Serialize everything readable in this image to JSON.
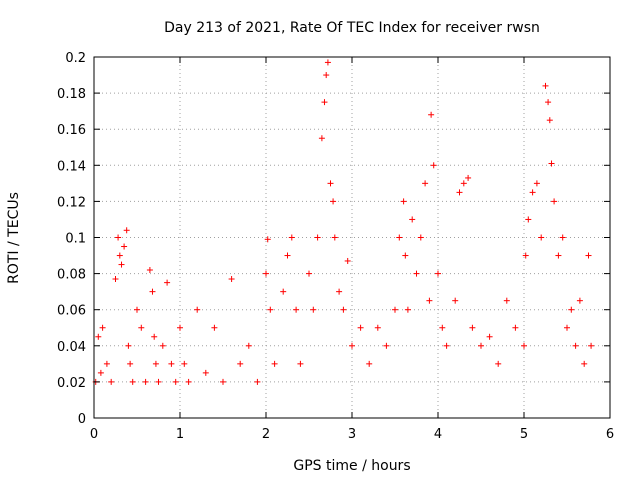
{
  "chart_data": {
    "type": "scatter",
    "title": "Day 213 of 2021, Rate Of TEC Index for receiver rwsn",
    "xlabel": "GPS time / hours",
    "ylabel": "ROTI / TECUs",
    "xlim": [
      0,
      6
    ],
    "ylim": [
      0,
      0.2
    ],
    "x_ticks": [
      "0",
      "1",
      "2",
      "3",
      "4",
      "5",
      "6"
    ],
    "y_ticks": [
      "0",
      "0.02",
      "0.04",
      "0.06",
      "0.08",
      "0.1",
      "0.12",
      "0.14",
      "0.16",
      "0.18",
      "0.2"
    ],
    "grid": true,
    "marker": "+",
    "color": "#ff0000",
    "series": [
      {
        "name": "ROTI",
        "x": [
          0.02,
          0.05,
          0.08,
          0.1,
          0.15,
          0.2,
          0.25,
          0.28,
          0.3,
          0.32,
          0.35,
          0.38,
          0.4,
          0.42,
          0.45,
          0.5,
          0.55,
          0.6,
          0.65,
          0.68,
          0.7,
          0.72,
          0.75,
          0.8,
          0.85,
          0.9,
          0.95,
          1.0,
          1.05,
          1.1,
          1.2,
          1.3,
          1.4,
          1.5,
          1.6,
          1.7,
          1.8,
          1.9,
          2.0,
          2.02,
          2.05,
          2.1,
          2.2,
          2.25,
          2.3,
          2.35,
          2.4,
          2.5,
          2.55,
          2.6,
          2.65,
          2.68,
          2.7,
          2.72,
          2.75,
          2.78,
          2.8,
          2.85,
          2.9,
          2.95,
          3.0,
          3.1,
          3.2,
          3.3,
          3.4,
          3.5,
          3.55,
          3.6,
          3.62,
          3.65,
          3.7,
          3.75,
          3.8,
          3.85,
          3.9,
          3.92,
          3.95,
          4.0,
          4.05,
          4.1,
          4.2,
          4.25,
          4.3,
          4.35,
          4.4,
          4.5,
          4.6,
          4.7,
          4.8,
          4.9,
          5.0,
          5.02,
          5.05,
          5.1,
          5.15,
          5.2,
          5.25,
          5.28,
          5.3,
          5.32,
          5.35,
          5.4,
          5.45,
          5.5,
          5.55,
          5.6,
          5.65,
          5.7,
          5.75,
          5.78
        ],
        "y": [
          0.02,
          0.045,
          0.025,
          0.05,
          0.03,
          0.02,
          0.077,
          0.1,
          0.09,
          0.085,
          0.095,
          0.104,
          0.04,
          0.03,
          0.02,
          0.06,
          0.05,
          0.02,
          0.082,
          0.07,
          0.045,
          0.03,
          0.02,
          0.04,
          0.075,
          0.03,
          0.02,
          0.05,
          0.03,
          0.02,
          0.06,
          0.025,
          0.05,
          0.02,
          0.077,
          0.03,
          0.04,
          0.02,
          0.08,
          0.099,
          0.06,
          0.03,
          0.07,
          0.09,
          0.1,
          0.06,
          0.03,
          0.08,
          0.06,
          0.1,
          0.155,
          0.175,
          0.19,
          0.197,
          0.13,
          0.12,
          0.1,
          0.07,
          0.06,
          0.087,
          0.04,
          0.05,
          0.03,
          0.05,
          0.04,
          0.06,
          0.1,
          0.12,
          0.09,
          0.06,
          0.11,
          0.08,
          0.1,
          0.13,
          0.065,
          0.168,
          0.14,
          0.08,
          0.05,
          0.04,
          0.065,
          0.125,
          0.13,
          0.133,
          0.05,
          0.04,
          0.045,
          0.03,
          0.065,
          0.05,
          0.04,
          0.09,
          0.11,
          0.125,
          0.13,
          0.1,
          0.184,
          0.175,
          0.165,
          0.141,
          0.12,
          0.09,
          0.1,
          0.05,
          0.06,
          0.04,
          0.065,
          0.03,
          0.09,
          0.04
        ]
      }
    ]
  }
}
